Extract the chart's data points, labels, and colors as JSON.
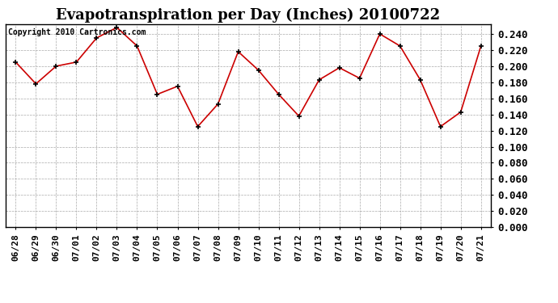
{
  "title": "Evapotranspiration per Day (Inches) 20100722",
  "copyright": "Copyright 2010 Cartronics.com",
  "labels": [
    "06/28",
    "06/29",
    "06/30",
    "07/01",
    "07/02",
    "07/03",
    "07/04",
    "07/05",
    "07/06",
    "07/07",
    "07/08",
    "07/09",
    "07/10",
    "07/11",
    "07/12",
    "07/13",
    "07/14",
    "07/15",
    "07/16",
    "07/17",
    "07/18",
    "07/19",
    "07/20",
    "07/21"
  ],
  "values": [
    0.205,
    0.178,
    0.2,
    0.205,
    0.235,
    0.248,
    0.225,
    0.165,
    0.175,
    0.125,
    0.153,
    0.218,
    0.195,
    0.165,
    0.138,
    0.183,
    0.198,
    0.185,
    0.24,
    0.225,
    0.183,
    0.125,
    0.143,
    0.225
  ],
  "line_color": "#cc0000",
  "marker_color": "#000000",
  "background_color": "#ffffff",
  "grid_color": "#aaaaaa",
  "ylim": [
    0.0,
    0.252
  ],
  "ytick_max": 0.24,
  "ytick_step": 0.02,
  "title_fontsize": 13,
  "copyright_fontsize": 7,
  "tick_fontsize": 9,
  "xtick_fontsize": 8,
  "figwidth": 6.9,
  "figheight": 3.75,
  "dpi": 100
}
